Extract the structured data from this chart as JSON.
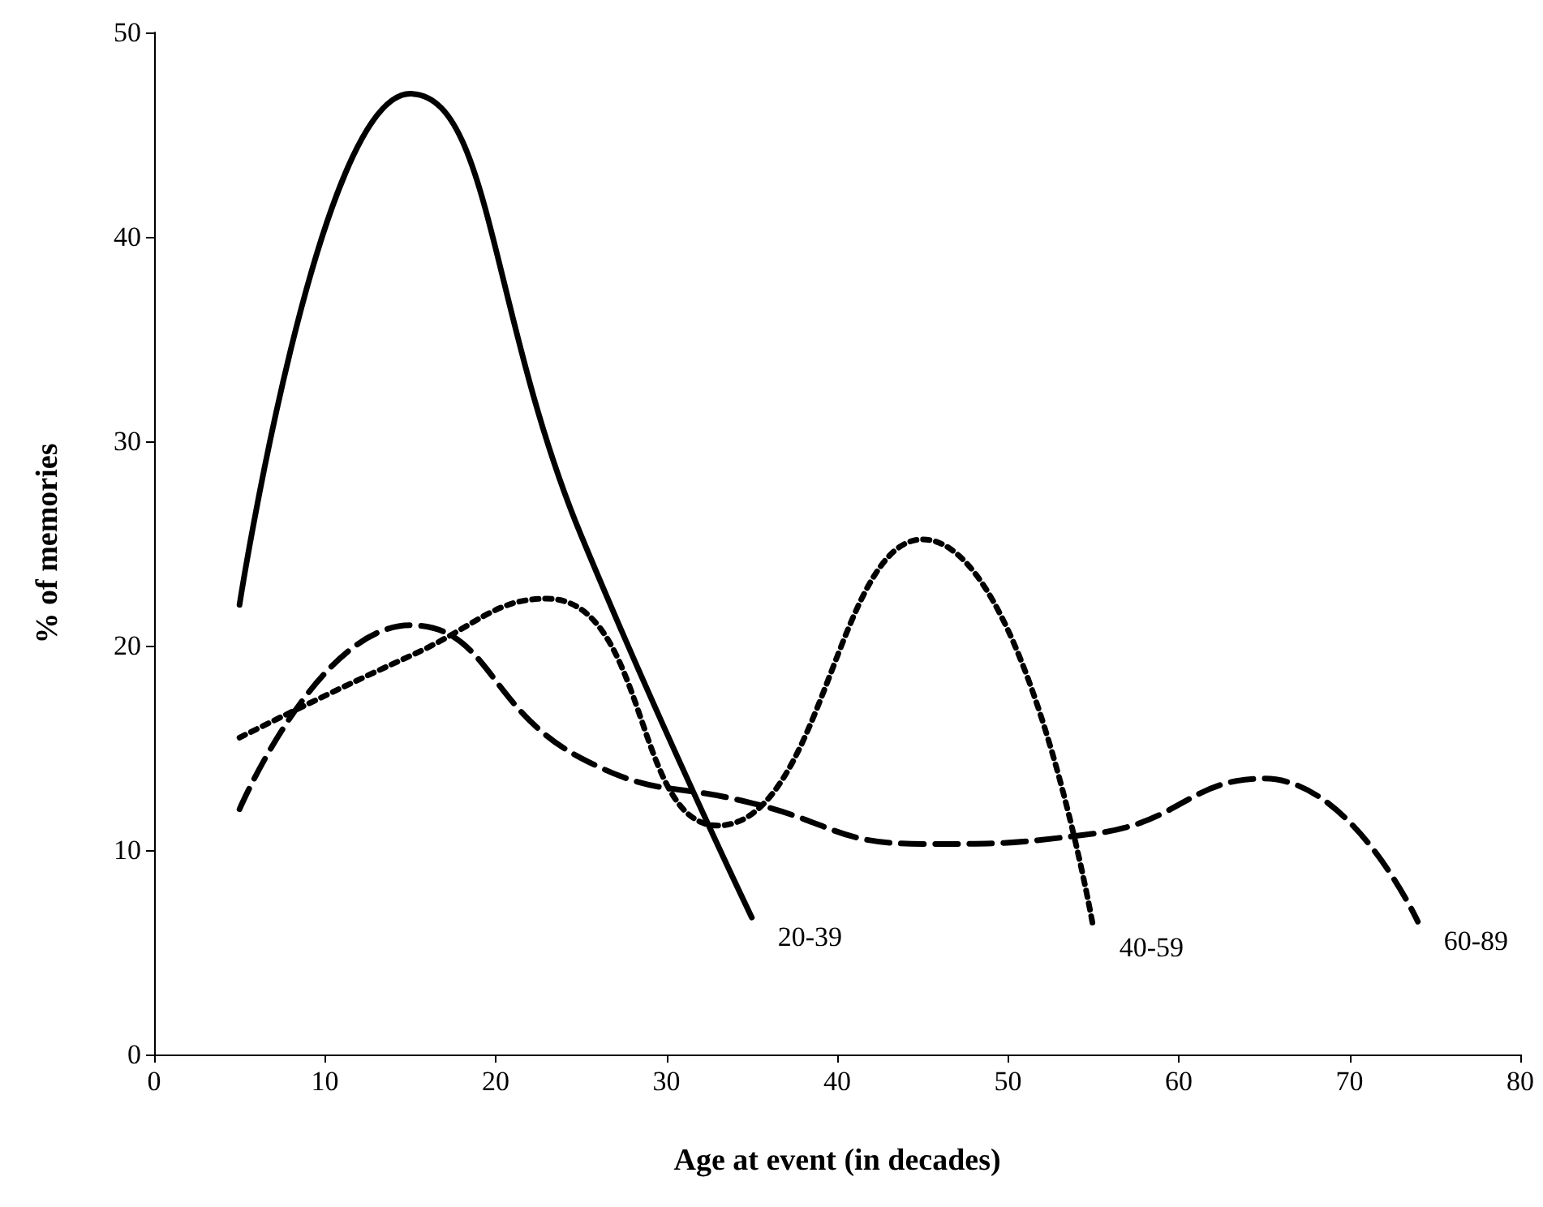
{
  "chart_data": {
    "type": "line",
    "xlabel": "Age at event (in decades)",
    "ylabel": "% of memories",
    "xlim": [
      0,
      80
    ],
    "xticks": [
      0,
      10,
      20,
      30,
      40,
      50,
      60,
      70,
      80
    ],
    "ylim": [
      0,
      50
    ],
    "yticks": [
      0,
      10,
      20,
      30,
      40,
      50
    ],
    "grid": false,
    "legend": false,
    "marker": "none",
    "series": [
      {
        "name": "20-39",
        "color": "#000000",
        "line_style": "solid",
        "x": [
          5,
          15,
          25,
          35
        ],
        "values": [
          22,
          47,
          25.4,
          6.7
        ]
      },
      {
        "name": "40-59",
        "color": "#000000",
        "line_style": "dotted",
        "x": [
          5,
          15,
          23,
          33,
          45,
          55
        ],
        "values": [
          15.5,
          19.5,
          22.3,
          11.2,
          25.2,
          6.2
        ]
      },
      {
        "name": "60-89",
        "color": "#000000",
        "line_style": "dashed",
        "x": [
          5,
          15,
          25,
          35,
          45,
          55,
          65,
          74
        ],
        "values": [
          12,
          21,
          14.5,
          12.3,
          10.3,
          10.8,
          13.5,
          6.5
        ]
      }
    ]
  }
}
